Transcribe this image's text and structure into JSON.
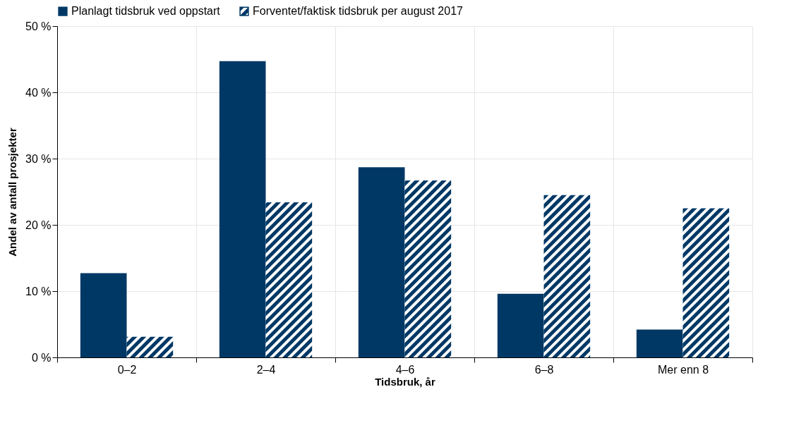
{
  "chart_data": {
    "type": "bar",
    "xlabel": "Tidsbruk, år",
    "ylabel": "Andel av antall prosjekter",
    "categories": [
      "0–2",
      "2–4",
      "4–6",
      "6–8",
      "Mer enn 8"
    ],
    "series": [
      {
        "name": "Planlagt tidsbruk ved oppstart",
        "color": "#003865",
        "values": [
          12.7,
          44.7,
          28.7,
          9.6,
          4.2
        ]
      },
      {
        "name": "Forventet/faktisk tidsbruk per august 2017",
        "color": "#003865",
        "values": [
          3.1,
          23.4,
          26.7,
          24.5,
          22.5
        ]
      }
    ],
    "ylim": [
      0,
      50
    ],
    "yticks": [
      {
        "value": 0,
        "label": "0 %"
      },
      {
        "value": 10,
        "label": "10 %"
      },
      {
        "value": 20,
        "label": "20 %"
      },
      {
        "value": 30,
        "label": "30 %"
      },
      {
        "value": 40,
        "label": "40 %"
      },
      {
        "value": 50,
        "label": "50 %"
      }
    ],
    "grid": true,
    "legend": "top"
  }
}
